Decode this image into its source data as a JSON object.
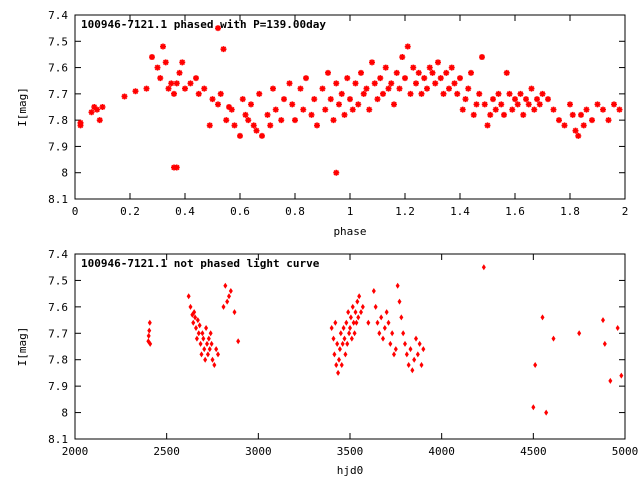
{
  "chart_data": [
    {
      "type": "scatter",
      "title": "100946-7121.1 phased with P=139.00day",
      "xlabel": "phase",
      "ylabel": "I[mag]",
      "xlim": [
        0,
        2
      ],
      "ylim": [
        7.4,
        8.1
      ],
      "y_inverted": true,
      "x_ticks": [
        "0",
        "0.2",
        "0.4",
        "0.6",
        "0.8",
        "1",
        "1.2",
        "1.4",
        "1.6",
        "1.8",
        "2"
      ],
      "y_ticks": [
        "7.4",
        "7.5",
        "7.6",
        "7.7",
        "7.8",
        "7.9",
        "8",
        "8.1"
      ],
      "point_color": "#ff0000",
      "series": [
        {
          "x": [
            0.02,
            0.02,
            0.06,
            0.07,
            0.08,
            0.09,
            0.1,
            0.18,
            0.22,
            0.26,
            0.28,
            0.3,
            0.31,
            0.32,
            0.33,
            0.34,
            0.35,
            0.36,
            0.37,
            0.38,
            0.39,
            0.4,
            0.42,
            0.44,
            0.45,
            0.47,
            0.49,
            0.5,
            0.52,
            0.53,
            0.55,
            0.56,
            0.57,
            0.58,
            0.6,
            0.61,
            0.62,
            0.63,
            0.64,
            0.65,
            0.66,
            0.67,
            0.68,
            0.7,
            0.71,
            0.72,
            0.73,
            0.75,
            0.76,
            0.78,
            0.79,
            0.8,
            0.82,
            0.83,
            0.84,
            0.86,
            0.87,
            0.88,
            0.9,
            0.91,
            0.92,
            0.93,
            0.94,
            0.95,
            0.96,
            0.97,
            0.98,
            0.99,
            1.0,
            1.01,
            1.02,
            1.03,
            1.04,
            1.05,
            1.06,
            1.07,
            1.08,
            1.09,
            1.1,
            1.11,
            1.12,
            1.13,
            1.14,
            1.15,
            1.16,
            1.17,
            1.18,
            1.19,
            1.2,
            1.21,
            1.22,
            1.23,
            1.24,
            1.25,
            1.26,
            1.27,
            1.28,
            1.29,
            1.3,
            1.31,
            1.32,
            1.33,
            1.34,
            1.35,
            1.36,
            1.37,
            1.38,
            1.39,
            1.4,
            1.41,
            1.42,
            1.43,
            1.44,
            1.45,
            1.46,
            1.47,
            1.48,
            1.49,
            1.5,
            1.51,
            1.52,
            1.53,
            1.54,
            1.55,
            1.56,
            1.57,
            1.58,
            1.59,
            1.6,
            1.61,
            1.62,
            1.63,
            1.64,
            1.65,
            1.66,
            1.67,
            1.68,
            1.69,
            1.7,
            1.72,
            1.74,
            1.76,
            1.78,
            1.8,
            1.81,
            1.82,
            1.83,
            1.84,
            1.85,
            1.86,
            1.88,
            1.9,
            1.92,
            1.94,
            1.96,
            1.98,
            0.37,
            0.52,
            0.95,
            0.36,
            0.54
          ],
          "y": [
            7.81,
            7.82,
            7.77,
            7.75,
            7.76,
            7.8,
            7.75,
            7.71,
            7.69,
            7.68,
            7.56,
            7.6,
            7.64,
            7.52,
            7.58,
            7.68,
            7.66,
            7.7,
            7.66,
            7.62,
            7.58,
            7.68,
            7.66,
            7.64,
            7.7,
            7.68,
            7.82,
            7.72,
            7.74,
            7.7,
            7.8,
            7.75,
            7.76,
            7.82,
            7.86,
            7.72,
            7.78,
            7.8,
            7.74,
            7.82,
            7.84,
            7.7,
            7.86,
            7.78,
            7.82,
            7.68,
            7.76,
            7.8,
            7.72,
            7.66,
            7.74,
            7.8,
            7.68,
            7.76,
            7.64,
            7.78,
            7.72,
            7.82,
            7.68,
            7.76,
            7.62,
            7.72,
            7.8,
            7.66,
            7.74,
            7.7,
            7.78,
            7.64,
            7.72,
            7.76,
            7.66,
            7.74,
            7.62,
            7.7,
            7.68,
            7.76,
            7.58,
            7.66,
            7.72,
            7.64,
            7.7,
            7.6,
            7.68,
            7.66,
            7.74,
            7.62,
            7.68,
            7.56,
            7.64,
            7.52,
            7.7,
            7.6,
            7.66,
            7.62,
            7.7,
            7.64,
            7.68,
            7.6,
            7.62,
            7.66,
            7.58,
            7.64,
            7.7,
            7.62,
            7.68,
            7.6,
            7.66,
            7.7,
            7.64,
            7.76,
            7.72,
            7.68,
            7.62,
            7.78,
            7.74,
            7.7,
            7.56,
            7.74,
            7.82,
            7.78,
            7.72,
            7.76,
            7.7,
            7.74,
            7.78,
            7.62,
            7.7,
            7.76,
            7.72,
            7.74,
            7.7,
            7.78,
            7.72,
            7.74,
            7.68,
            7.76,
            7.72,
            7.74,
            7.7,
            7.72,
            7.76,
            7.8,
            7.82,
            7.74,
            7.78,
            7.84,
            7.86,
            7.78,
            7.82,
            7.76,
            7.8,
            7.74,
            7.76,
            7.8,
            7.74,
            7.76,
            7.98,
            7.45,
            8.0,
            7.98,
            7.53
          ]
        }
      ]
    },
    {
      "type": "scatter",
      "title": "100946-7121.1 not phased light curve",
      "xlabel": "hjd0",
      "ylabel": "I[mag]",
      "xlim": [
        2000,
        5000
      ],
      "ylim": [
        7.4,
        8.1
      ],
      "y_inverted": true,
      "x_ticks": [
        "2000",
        "2500",
        "3000",
        "3500",
        "4000",
        "4500",
        "5000"
      ],
      "y_ticks": [
        "7.4",
        "7.5",
        "7.6",
        "7.7",
        "7.8",
        "7.9",
        "8",
        "8.1"
      ],
      "point_color": "#ff0000",
      "series": [
        {
          "x": [
            2400,
            2402,
            2405,
            2408,
            2410,
            2620,
            2630,
            2640,
            2645,
            2650,
            2655,
            2660,
            2665,
            2670,
            2675,
            2680,
            2685,
            2690,
            2695,
            2700,
            2705,
            2710,
            2715,
            2720,
            2725,
            2730,
            2735,
            2740,
            2745,
            2750,
            2760,
            2770,
            2780,
            2810,
            2820,
            2830,
            2840,
            2850,
            2870,
            2890,
            3400,
            3410,
            3415,
            3420,
            3425,
            3430,
            3435,
            3440,
            3445,
            3450,
            3455,
            3460,
            3465,
            3470,
            3475,
            3480,
            3485,
            3490,
            3495,
            3500,
            3505,
            3510,
            3515,
            3520,
            3525,
            3530,
            3535,
            3540,
            3545,
            3550,
            3560,
            3570,
            3600,
            3630,
            3640,
            3650,
            3660,
            3670,
            3680,
            3690,
            3700,
            3710,
            3720,
            3730,
            3740,
            3750,
            3760,
            3770,
            3780,
            3790,
            3800,
            3810,
            3820,
            3830,
            3840,
            3850,
            3860,
            3870,
            3880,
            3890,
            3900,
            4230,
            4500,
            4510,
            4550,
            4570,
            4610,
            4750,
            4880,
            4890,
            4920,
            4960,
            4980
          ],
          "y": [
            7.73,
            7.71,
            7.69,
            7.66,
            7.74,
            7.56,
            7.6,
            7.63,
            7.66,
            7.62,
            7.64,
            7.68,
            7.72,
            7.65,
            7.7,
            7.67,
            7.74,
            7.78,
            7.7,
            7.72,
            7.76,
            7.8,
            7.68,
            7.74,
            7.78,
            7.72,
            7.76,
            7.7,
            7.74,
            7.8,
            7.82,
            7.76,
            7.78,
            7.6,
            7.52,
            7.58,
            7.56,
            7.54,
            7.62,
            7.73,
            7.68,
            7.72,
            7.78,
            7.66,
            7.82,
            7.74,
            7.85,
            7.8,
            7.76,
            7.7,
            7.82,
            7.74,
            7.68,
            7.72,
            7.78,
            7.66,
            7.74,
            7.62,
            7.7,
            7.68,
            7.64,
            7.72,
            7.6,
            7.66,
            7.7,
            7.62,
            7.66,
            7.58,
            7.64,
            7.56,
            7.62,
            7.6,
            7.66,
            7.54,
            7.6,
            7.66,
            7.7,
            7.64,
            7.72,
            7.68,
            7.62,
            7.66,
            7.74,
            7.7,
            7.78,
            7.76,
            7.52,
            7.58,
            7.64,
            7.7,
            7.74,
            7.78,
            7.82,
            7.76,
            7.84,
            7.8,
            7.72,
            7.78,
            7.74,
            7.82,
            7.76,
            7.45,
            7.98,
            7.82,
            7.64,
            8.0,
            7.72,
            7.7,
            7.65,
            7.74,
            7.88,
            7.68,
            7.86
          ]
        }
      ]
    }
  ]
}
